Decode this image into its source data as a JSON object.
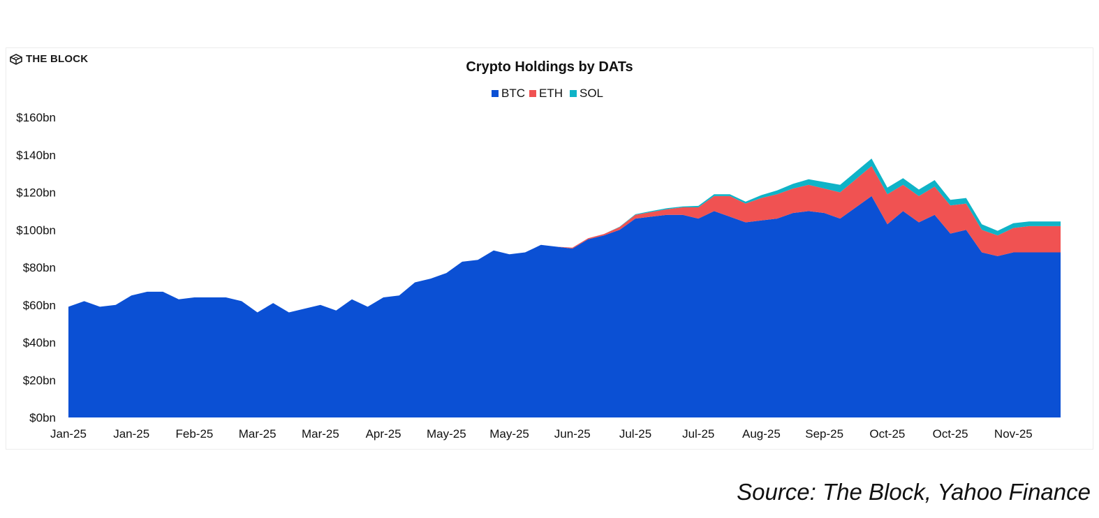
{
  "brand": {
    "name": "THE BLOCK",
    "icon": "cube-icon"
  },
  "source": "Source: The Block, Yahoo Finance",
  "chart_data": {
    "type": "area",
    "stacked": true,
    "title": "Crypto Holdings by DATs",
    "xlabel": "",
    "ylabel": "",
    "ylim": [
      0,
      160
    ],
    "y_unit": "bn",
    "y_ticks": [
      "$0bn",
      "$20bn",
      "$40bn",
      "$60bn",
      "$80bn",
      "$100bn",
      "$120bn",
      "$140bn",
      "$160bn"
    ],
    "x_tick_labels": [
      "Jan-25",
      "Jan-25",
      "Feb-25",
      "Mar-25",
      "Mar-25",
      "Apr-25",
      "May-25",
      "May-25",
      "Jun-25",
      "Jul-25",
      "Jul-25",
      "Aug-25",
      "Sep-25",
      "Oct-25",
      "Oct-25",
      "Nov-25"
    ],
    "x_tick_positions": [
      0,
      1,
      2,
      3,
      4,
      5,
      6,
      7,
      8,
      9,
      10,
      11,
      12,
      13,
      14,
      15
    ],
    "x": [
      0,
      0.25,
      0.5,
      0.75,
      1,
      1.25,
      1.5,
      1.75,
      2,
      2.25,
      2.5,
      2.75,
      3,
      3.25,
      3.5,
      3.75,
      4,
      4.25,
      4.5,
      4.75,
      5,
      5.25,
      5.5,
      5.75,
      6,
      6.25,
      6.5,
      6.75,
      7,
      7.25,
      7.5,
      7.75,
      8,
      8.25,
      8.5,
      8.75,
      9,
      9.25,
      9.5,
      9.75,
      10,
      10.25,
      10.5,
      10.75,
      11,
      11.25,
      11.5,
      11.75,
      12,
      12.25,
      12.5,
      12.75,
      13,
      13.25,
      13.5,
      13.75,
      14,
      14.25,
      14.5,
      14.75,
      15,
      15.25,
      15.5,
      15.75
    ],
    "legend_position": "top-center",
    "grid": false,
    "series": [
      {
        "name": "BTC",
        "color": "#0b50d4",
        "values": [
          59,
          62,
          59,
          60,
          65,
          67,
          67,
          63,
          64,
          64,
          64,
          62,
          56,
          61,
          56,
          58,
          60,
          57,
          63,
          59,
          64,
          65,
          72,
          74,
          77,
          83,
          84,
          89,
          87,
          88,
          92,
          91,
          90,
          95,
          97,
          100,
          106,
          107,
          108,
          108,
          106,
          110,
          107,
          104,
          105,
          106,
          109,
          110,
          109,
          106,
          112,
          118,
          103,
          110,
          104,
          108,
          98,
          100,
          88,
          86,
          88,
          88,
          88,
          88
        ]
      },
      {
        "name": "ETH",
        "color": "#f05252",
        "values": [
          0,
          0,
          0,
          0,
          0,
          0,
          0,
          0,
          0,
          0,
          0,
          0,
          0,
          0,
          0,
          0,
          0,
          0,
          0,
          0,
          0,
          0,
          0,
          0,
          0,
          0,
          0,
          0,
          0,
          0,
          0,
          0,
          0.5,
          0.5,
          0.8,
          1.5,
          2,
          2.5,
          3,
          4,
          6,
          8,
          11,
          10,
          12,
          13,
          13,
          14,
          13,
          14,
          15,
          16,
          16,
          14,
          14,
          15,
          15,
          14,
          12,
          11,
          13,
          14,
          14,
          14
        ]
      },
      {
        "name": "SOL",
        "color": "#0fb3c7",
        "values": [
          0,
          0,
          0,
          0,
          0,
          0,
          0,
          0,
          0,
          0,
          0,
          0,
          0,
          0,
          0,
          0,
          0,
          0,
          0,
          0,
          0,
          0,
          0,
          0,
          0,
          0,
          0,
          0,
          0,
          0,
          0,
          0,
          0,
          0,
          0,
          0.2,
          0.3,
          0.5,
          0.5,
          0.5,
          0.8,
          1,
          1,
          1,
          1.5,
          2,
          2.5,
          3,
          3.5,
          4,
          4,
          4,
          3.5,
          3.5,
          3.5,
          3.5,
          3,
          3,
          3,
          2.5,
          2.5,
          2.5,
          2.5,
          2.5
        ]
      }
    ]
  }
}
